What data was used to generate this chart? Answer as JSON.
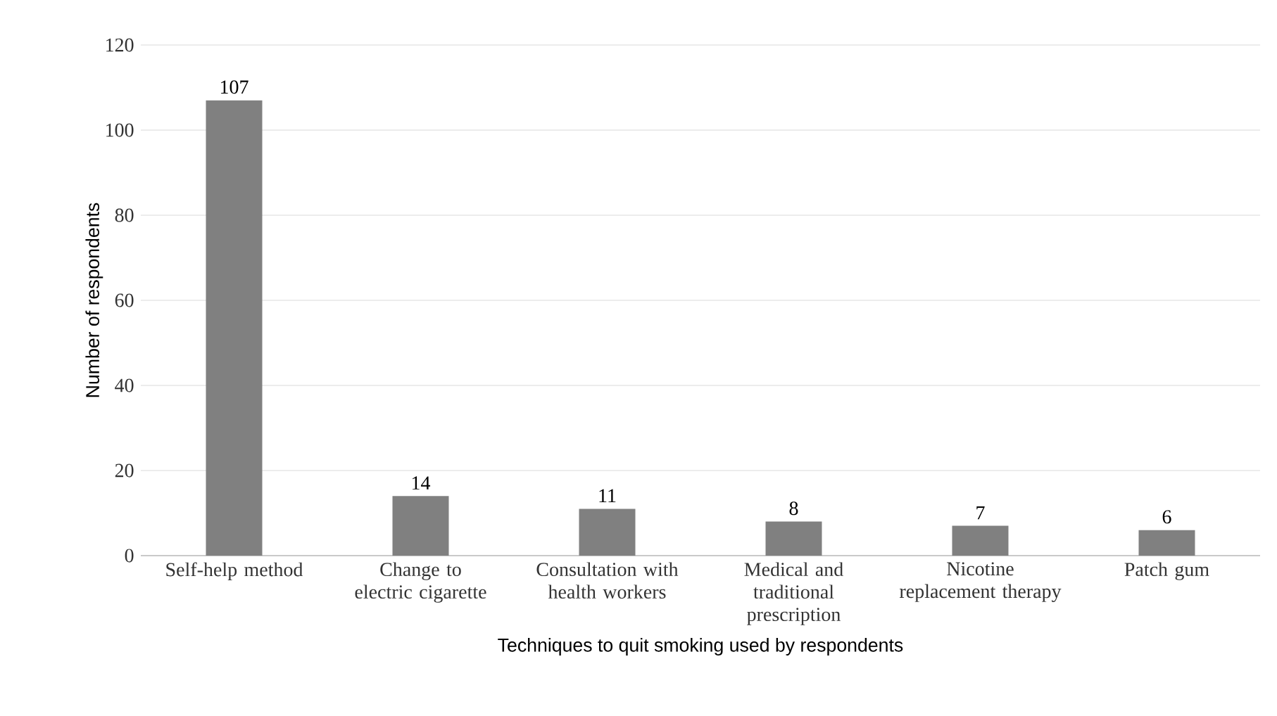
{
  "chart_data": {
    "type": "bar",
    "xlabel": "Techniques to quit smoking used by respondents",
    "ylabel": "Number of respondents",
    "categories": [
      "Self-help method",
      "Change to electric cigarette",
      "Consultation with health workers",
      "Medical and traditional prescription",
      "Nicotine replacement therapy",
      "Patch gum"
    ],
    "values": [
      107,
      14,
      11,
      8,
      7,
      6
    ],
    "color": "#808080",
    "ylim": [
      0,
      120
    ],
    "yticks": [
      0,
      20,
      40,
      60,
      80,
      100,
      120
    ],
    "grid": "y",
    "data_labels": true
  }
}
